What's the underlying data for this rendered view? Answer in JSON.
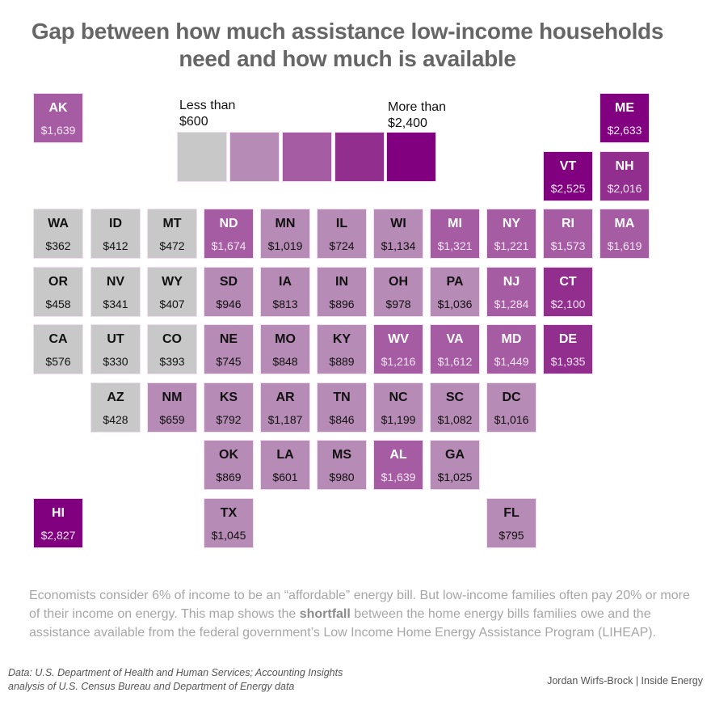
{
  "chart_data": {
    "type": "heatmap",
    "subtype": "tile-grid-map",
    "title": "Gap between how much assistance low-income households need and how much is available",
    "legend": {
      "low_label": "Less than\n$600",
      "high_label": "More than\n$2,400",
      "bins": [
        {
          "max": 600,
          "color": "#C8C8C8",
          "text": "dark"
        },
        {
          "max": 1200,
          "color": "#B68BB5",
          "text": "dark"
        },
        {
          "max": 1800,
          "color": "#A55CA3",
          "text": "light"
        },
        {
          "max": 2400,
          "color": "#912E8E",
          "text": "light"
        },
        {
          "max": null,
          "color": "#800080",
          "text": "light"
        }
      ]
    },
    "units": "USD shortfall per household",
    "states": [
      {
        "abbr": "AK",
        "value": 1639,
        "label": "$1,639",
        "row": 0,
        "col": 0
      },
      {
        "abbr": "ME",
        "value": 2633,
        "label": "$2,633",
        "row": 0,
        "col": 10
      },
      {
        "abbr": "VT",
        "value": 2525,
        "label": "$2,525",
        "row": 1,
        "col": 9
      },
      {
        "abbr": "NH",
        "value": 2016,
        "label": "$2,016",
        "row": 1,
        "col": 10
      },
      {
        "abbr": "WA",
        "value": 362,
        "label": "$362",
        "row": 2,
        "col": 0
      },
      {
        "abbr": "ID",
        "value": 412,
        "label": "$412",
        "row": 2,
        "col": 1
      },
      {
        "abbr": "MT",
        "value": 472,
        "label": "$472",
        "row": 2,
        "col": 2
      },
      {
        "abbr": "ND",
        "value": 1674,
        "label": "$1,674",
        "row": 2,
        "col": 3
      },
      {
        "abbr": "MN",
        "value": 1019,
        "label": "$1,019",
        "row": 2,
        "col": 4
      },
      {
        "abbr": "IL",
        "value": 724,
        "label": "$724",
        "row": 2,
        "col": 5
      },
      {
        "abbr": "WI",
        "value": 1134,
        "label": "$1,134",
        "row": 2,
        "col": 6
      },
      {
        "abbr": "MI",
        "value": 1321,
        "label": "$1,321",
        "row": 2,
        "col": 7
      },
      {
        "abbr": "NY",
        "value": 1221,
        "label": "$1,221",
        "row": 2,
        "col": 8
      },
      {
        "abbr": "RI",
        "value": 1573,
        "label": "$1,573",
        "row": 2,
        "col": 9
      },
      {
        "abbr": "MA",
        "value": 1619,
        "label": "$1,619",
        "row": 2,
        "col": 10
      },
      {
        "abbr": "OR",
        "value": 458,
        "label": "$458",
        "row": 3,
        "col": 0
      },
      {
        "abbr": "NV",
        "value": 341,
        "label": "$341",
        "row": 3,
        "col": 1
      },
      {
        "abbr": "WY",
        "value": 407,
        "label": "$407",
        "row": 3,
        "col": 2
      },
      {
        "abbr": "SD",
        "value": 946,
        "label": "$946",
        "row": 3,
        "col": 3
      },
      {
        "abbr": "IA",
        "value": 813,
        "label": "$813",
        "row": 3,
        "col": 4
      },
      {
        "abbr": "IN",
        "value": 896,
        "label": "$896",
        "row": 3,
        "col": 5
      },
      {
        "abbr": "OH",
        "value": 978,
        "label": "$978",
        "row": 3,
        "col": 6
      },
      {
        "abbr": "PA",
        "value": 1036,
        "label": "$1,036",
        "row": 3,
        "col": 7
      },
      {
        "abbr": "NJ",
        "value": 1284,
        "label": "$1,284",
        "row": 3,
        "col": 8
      },
      {
        "abbr": "CT",
        "value": 2100,
        "label": "$2,100",
        "row": 3,
        "col": 9
      },
      {
        "abbr": "CA",
        "value": 576,
        "label": "$576",
        "row": 4,
        "col": 0
      },
      {
        "abbr": "UT",
        "value": 330,
        "label": "$330",
        "row": 4,
        "col": 1
      },
      {
        "abbr": "CO",
        "value": 393,
        "label": "$393",
        "row": 4,
        "col": 2
      },
      {
        "abbr": "NE",
        "value": 745,
        "label": "$745",
        "row": 4,
        "col": 3
      },
      {
        "abbr": "MO",
        "value": 848,
        "label": "$848",
        "row": 4,
        "col": 4
      },
      {
        "abbr": "KY",
        "value": 889,
        "label": "$889",
        "row": 4,
        "col": 5
      },
      {
        "abbr": "WV",
        "value": 1216,
        "label": "$1,216",
        "row": 4,
        "col": 6
      },
      {
        "abbr": "VA",
        "value": 1612,
        "label": "$1,612",
        "row": 4,
        "col": 7
      },
      {
        "abbr": "MD",
        "value": 1449,
        "label": "$1,449",
        "row": 4,
        "col": 8
      },
      {
        "abbr": "DE",
        "value": 1935,
        "label": "$1,935",
        "row": 4,
        "col": 9
      },
      {
        "abbr": "AZ",
        "value": 428,
        "label": "$428",
        "row": 5,
        "col": 1
      },
      {
        "abbr": "NM",
        "value": 659,
        "label": "$659",
        "row": 5,
        "col": 2
      },
      {
        "abbr": "KS",
        "value": 792,
        "label": "$792",
        "row": 5,
        "col": 3
      },
      {
        "abbr": "AR",
        "value": 1187,
        "label": "$1,187",
        "row": 5,
        "col": 4
      },
      {
        "abbr": "TN",
        "value": 846,
        "label": "$846",
        "row": 5,
        "col": 5
      },
      {
        "abbr": "NC",
        "value": 1199,
        "label": "$1,199",
        "row": 5,
        "col": 6
      },
      {
        "abbr": "SC",
        "value": 1082,
        "label": "$1,082",
        "row": 5,
        "col": 7
      },
      {
        "abbr": "DC",
        "value": 1016,
        "label": "$1,016",
        "row": 5,
        "col": 8
      },
      {
        "abbr": "OK",
        "value": 869,
        "label": "$869",
        "row": 6,
        "col": 3
      },
      {
        "abbr": "LA",
        "value": 601,
        "label": "$601",
        "row": 6,
        "col": 4
      },
      {
        "abbr": "MS",
        "value": 980,
        "label": "$980",
        "row": 6,
        "col": 5
      },
      {
        "abbr": "AL",
        "value": 1639,
        "label": "$1,639",
        "row": 6,
        "col": 6
      },
      {
        "abbr": "GA",
        "value": 1025,
        "label": "$1,025",
        "row": 6,
        "col": 7
      },
      {
        "abbr": "HI",
        "value": 2827,
        "label": "$2,827",
        "row": 7,
        "col": 0
      },
      {
        "abbr": "TX",
        "value": 1045,
        "label": "$1,045",
        "row": 7,
        "col": 3
      },
      {
        "abbr": "FL",
        "value": 795,
        "label": "$795",
        "row": 7,
        "col": 8
      }
    ]
  },
  "title_line1": "Gap between how much assistance low-income households",
  "title_line2": "need and how much is available",
  "legend_low_line1": "Less than",
  "legend_low_line2": "$600",
  "legend_high_line1": "More than",
  "legend_high_line2": "$2,400",
  "description": {
    "before": "Economists consider 6% of income to be an “affordable” energy bill. But low-income families often pay 20% or more of their income on energy. This map shows the ",
    "bold": "shortfall",
    "after": " between the home energy bills families owe and the assistance available from the federal government’s Low Income Home Energy Assistance Program (LIHEAP)."
  },
  "source_line1": "Data: U.S. Department of Health and Human Services; Accounting Insights",
  "source_line2": "analysis of U.S. Census Bureau and Department of Energy data",
  "credit": "Jordan Wirfs-Brock | Inside Energy"
}
